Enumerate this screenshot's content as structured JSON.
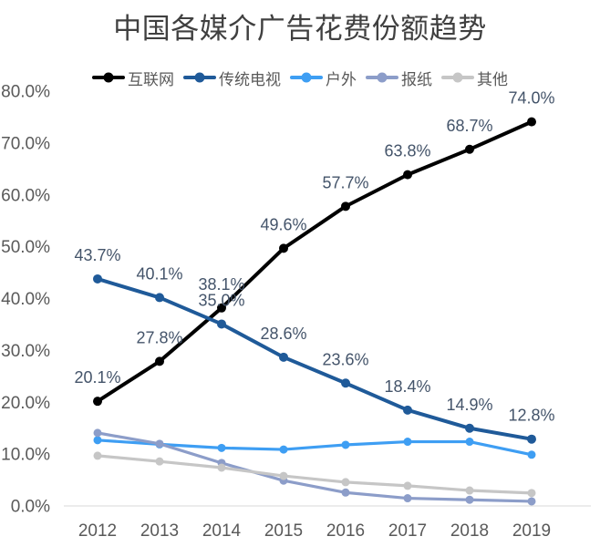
{
  "title": "中国各媒介广告花费份额趋势",
  "chart_data": {
    "type": "line",
    "title": "中国各媒介广告花费份额趋势",
    "x": [
      "2012",
      "2013",
      "2014",
      "2015",
      "2016",
      "2017",
      "2018",
      "2019"
    ],
    "series": [
      {
        "key": "internet",
        "name": "互联网",
        "color": "#000000",
        "values": [
          20.1,
          27.8,
          38.1,
          49.6,
          57.7,
          63.8,
          68.7,
          74.0
        ],
        "point_labels": [
          "20.1%",
          "27.8%",
          "38.1%",
          "49.6%",
          "57.7%",
          "63.8%",
          "68.7%",
          "74.0%"
        ]
      },
      {
        "key": "traditional-tv",
        "name": "传统电视",
        "color": "#1F5A99",
        "values": [
          43.7,
          40.1,
          35.0,
          28.6,
          23.6,
          18.4,
          14.9,
          12.8
        ],
        "point_labels": [
          "43.7%",
          "40.1%",
          "35.0%",
          "28.6%",
          "23.6%",
          "18.4%",
          "14.9%",
          "12.8%"
        ]
      },
      {
        "key": "outdoor",
        "name": "户外",
        "color": "#3E9EF3",
        "values": [
          12.6,
          11.8,
          11.1,
          10.8,
          11.7,
          12.3,
          12.3,
          9.8
        ],
        "point_labels": null
      },
      {
        "key": "newspaper",
        "name": "报纸",
        "color": "#8C9DC9",
        "values": [
          14.0,
          11.9,
          8.2,
          4.8,
          2.5,
          1.4,
          1.1,
          0.8
        ],
        "point_labels": null
      },
      {
        "key": "other",
        "name": "其他",
        "color": "#C6C6C6",
        "values": [
          9.6,
          8.5,
          7.3,
          5.7,
          4.5,
          3.8,
          2.9,
          2.4
        ],
        "point_labels": null
      }
    ],
    "ylim": [
      0,
      80
    ],
    "ytick_step": 10,
    "ytick_labels": [
      "0.0%",
      "10.0%",
      "20.0%",
      "30.0%",
      "40.0%",
      "50.0%",
      "60.0%",
      "70.0%",
      "80.0%"
    ],
    "legend_position": "top",
    "grid": false,
    "axis_line_color": "#D9D9D9",
    "tick_label_color": "#595959",
    "data_label_color": "#44546A",
    "title_color": "#404040"
  }
}
